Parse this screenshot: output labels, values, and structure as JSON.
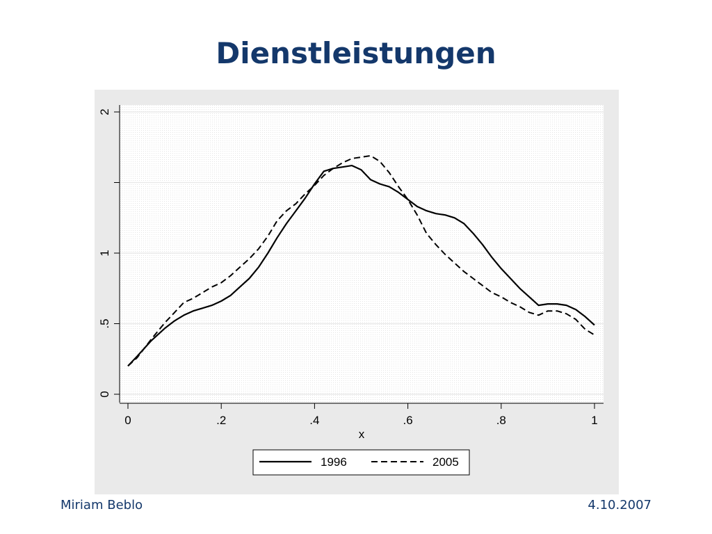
{
  "slide": {
    "title": "Dienstleistungen",
    "footer_left": "Miriam Beblo",
    "footer_right": "4.10.2007"
  },
  "colors": {
    "title": "#14386b",
    "chart_outer_bg": "#eaeaea",
    "plot_bg": "#ffffff"
  },
  "chart_data": {
    "type": "line",
    "xlabel": "x",
    "ylabel": "",
    "xlim": [
      0,
      1
    ],
    "ylim": [
      0,
      2
    ],
    "x_ticks": [
      {
        "value": 0,
        "label": "0"
      },
      {
        "value": 0.2,
        "label": ".2"
      },
      {
        "value": 0.4,
        "label": ".4"
      },
      {
        "value": 0.6,
        "label": ".6"
      },
      {
        "value": 0.8,
        "label": ".8"
      },
      {
        "value": 1,
        "label": "1"
      }
    ],
    "y_ticks": [
      {
        "value": 0,
        "label": "0"
      },
      {
        "value": 0.5,
        "label": ".5"
      },
      {
        "value": 1,
        "label": "1"
      },
      {
        "value": 1.5,
        "label": ""
      },
      {
        "value": 2,
        "label": "2"
      }
    ],
    "grid": true,
    "legend_position": "bottom",
    "series": [
      {
        "name": "1996",
        "style": "solid",
        "x": [
          0,
          0.02,
          0.05,
          0.08,
          0.1,
          0.12,
          0.14,
          0.16,
          0.18,
          0.2,
          0.22,
          0.24,
          0.26,
          0.28,
          0.3,
          0.32,
          0.34,
          0.36,
          0.38,
          0.4,
          0.42,
          0.44,
          0.46,
          0.48,
          0.5,
          0.52,
          0.54,
          0.56,
          0.58,
          0.6,
          0.62,
          0.64,
          0.66,
          0.68,
          0.7,
          0.72,
          0.74,
          0.76,
          0.78,
          0.8,
          0.82,
          0.84,
          0.86,
          0.88,
          0.9,
          0.92,
          0.94,
          0.96,
          0.98,
          1.0
        ],
        "y": [
          0.2,
          0.27,
          0.38,
          0.47,
          0.52,
          0.56,
          0.59,
          0.61,
          0.63,
          0.66,
          0.7,
          0.76,
          0.82,
          0.9,
          1.0,
          1.11,
          1.21,
          1.3,
          1.39,
          1.49,
          1.58,
          1.6,
          1.61,
          1.62,
          1.59,
          1.52,
          1.49,
          1.47,
          1.43,
          1.38,
          1.33,
          1.3,
          1.28,
          1.27,
          1.25,
          1.21,
          1.14,
          1.06,
          0.97,
          0.89,
          0.82,
          0.75,
          0.69,
          0.63,
          0.64,
          0.64,
          0.63,
          0.6,
          0.55,
          0.49
        ]
      },
      {
        "name": "2005",
        "style": "dashed",
        "x": [
          0,
          0.02,
          0.05,
          0.08,
          0.1,
          0.12,
          0.14,
          0.16,
          0.18,
          0.2,
          0.22,
          0.24,
          0.26,
          0.28,
          0.3,
          0.32,
          0.34,
          0.36,
          0.38,
          0.4,
          0.42,
          0.44,
          0.46,
          0.48,
          0.5,
          0.52,
          0.54,
          0.56,
          0.58,
          0.6,
          0.62,
          0.64,
          0.66,
          0.68,
          0.7,
          0.72,
          0.74,
          0.76,
          0.78,
          0.8,
          0.82,
          0.84,
          0.86,
          0.88,
          0.9,
          0.92,
          0.94,
          0.96,
          0.98,
          1.0
        ],
        "y": [
          0.2,
          0.26,
          0.39,
          0.51,
          0.58,
          0.65,
          0.68,
          0.72,
          0.76,
          0.79,
          0.84,
          0.9,
          0.96,
          1.03,
          1.12,
          1.23,
          1.3,
          1.35,
          1.42,
          1.48,
          1.55,
          1.6,
          1.64,
          1.67,
          1.68,
          1.69,
          1.65,
          1.57,
          1.47,
          1.38,
          1.27,
          1.14,
          1.06,
          0.99,
          0.93,
          0.87,
          0.82,
          0.77,
          0.72,
          0.69,
          0.65,
          0.62,
          0.58,
          0.56,
          0.59,
          0.59,
          0.57,
          0.53,
          0.46,
          0.42
        ]
      }
    ]
  }
}
